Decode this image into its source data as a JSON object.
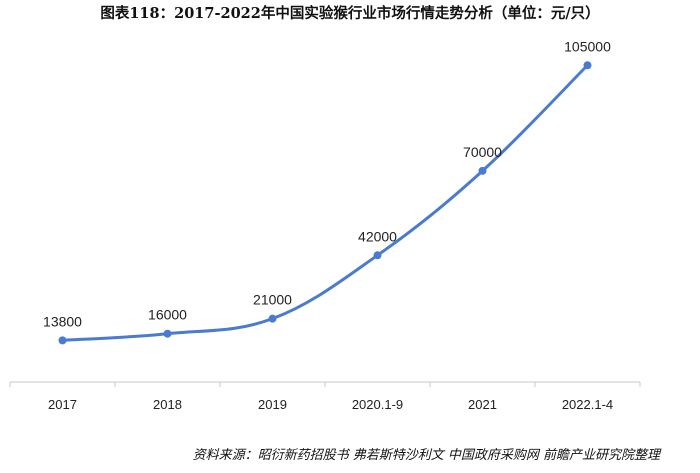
{
  "chart_data": {
    "type": "line",
    "title": "图表118：2017-2022年中国实验猴行业市场行情走势分析（单位：元/只）",
    "categories": [
      "2017",
      "2018",
      "2019",
      "2020.1-9",
      "2021",
      "2022.1-4"
    ],
    "series": [
      {
        "values": [
          13800,
          16000,
          21000,
          42000,
          70000,
          105000
        ],
        "color": "#4a7bd0"
      }
    ],
    "data_labels": [
      "13800",
      "16000",
      "21000",
      "42000",
      "70000",
      "105000"
    ],
    "ylim": [
      0,
      120000
    ],
    "grid": false,
    "legend": "none",
    "source": "资料来源：昭衍新药招股书 弗若斯特沙利文 中国政府采购网 前瞻产业研究院整理"
  }
}
